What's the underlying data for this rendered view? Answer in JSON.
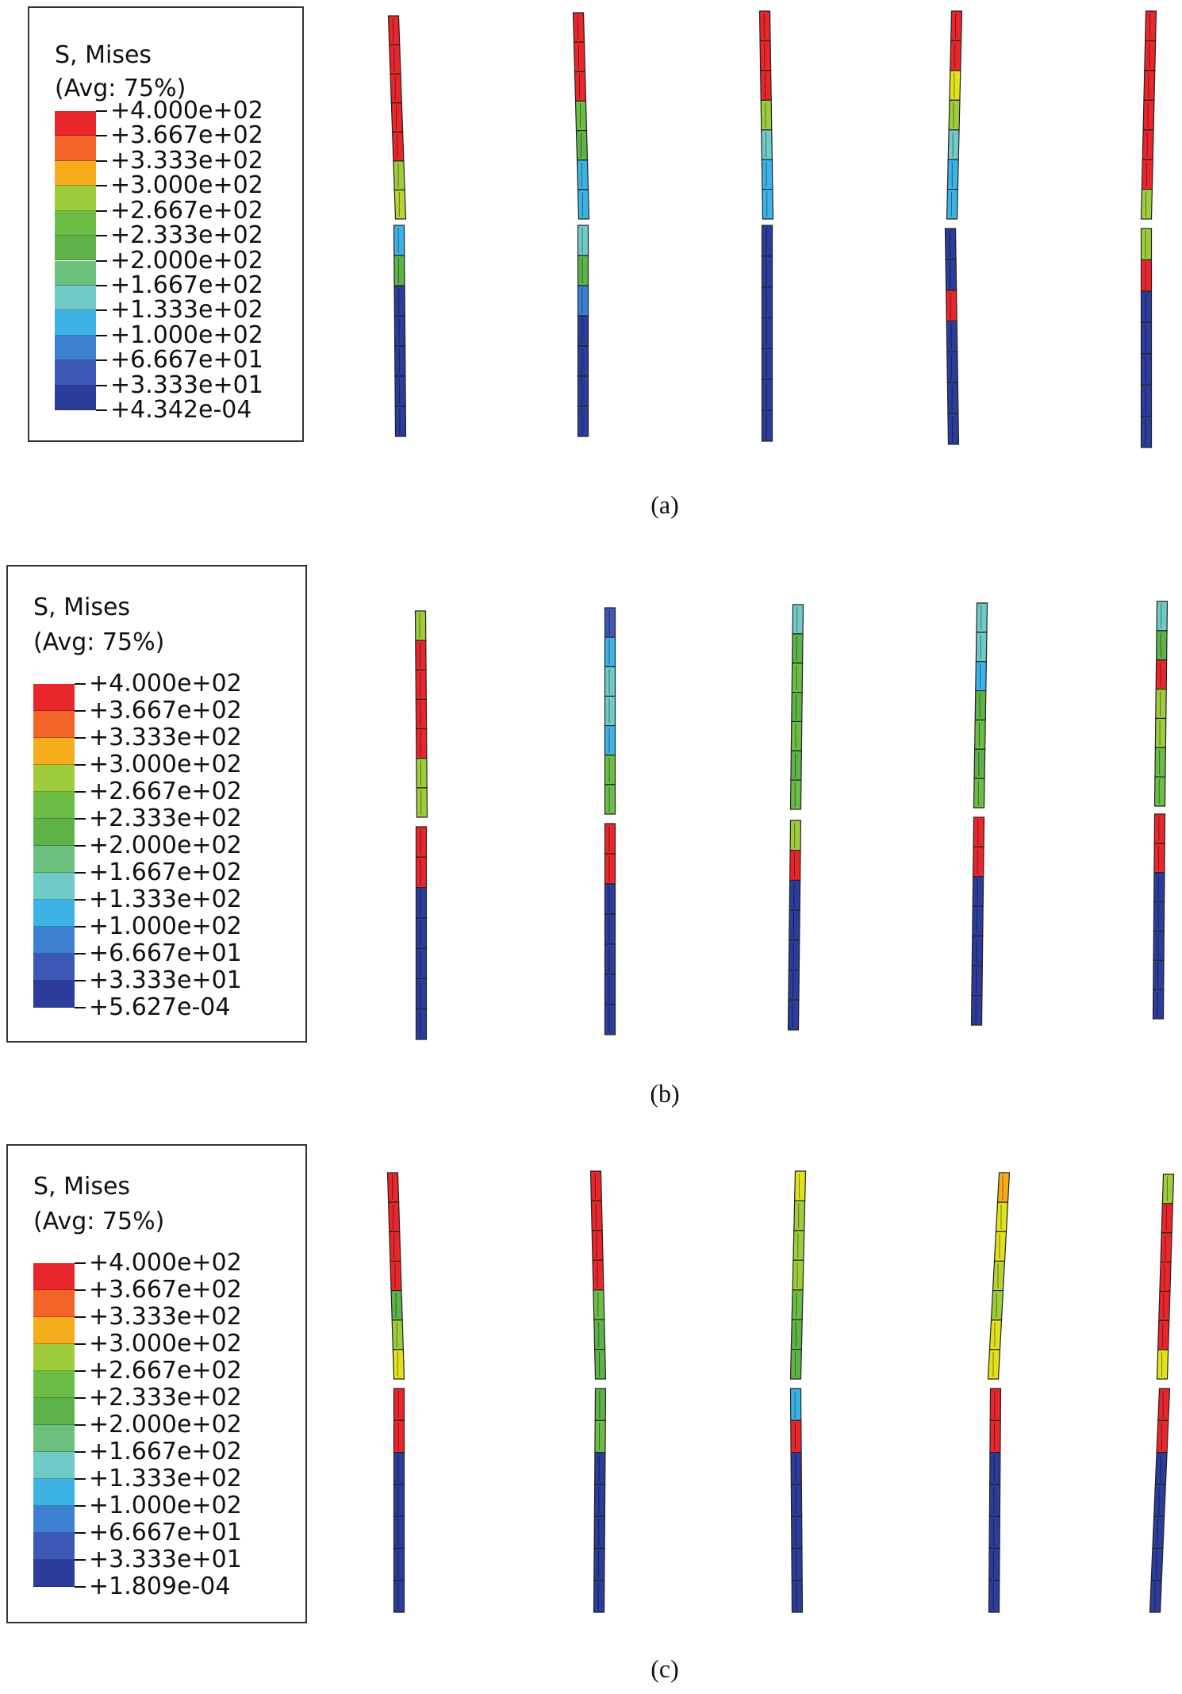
{
  "legend_title": [
    "S, Mises",
    "(Avg: 75%)"
  ],
  "colors": [
    "#e8262b",
    "#f26427",
    "#f6ad1c",
    "#e2e11d",
    "#9fcc3b",
    "#6bbd45",
    "#5db248",
    "#6cc07e",
    "#6fcac8",
    "#3db2e5",
    "#3d7fd1",
    "#3d57b4",
    "#2b3c9a"
  ],
  "panels": [
    {
      "caption": "(a)",
      "legend_values": [
        "+4.000e+02",
        "+3.667e+02",
        "+3.333e+02",
        "+3.000e+02",
        "+2.667e+02",
        "+2.333e+02",
        "+2.000e+02",
        "+1.667e+02",
        "+1.333e+02",
        "+1.000e+02",
        "+6.667e+01",
        "+3.333e+01",
        "+4.342e-04"
      ],
      "columns": [
        {
          "upper": [
            "#e8262b",
            "#e8262b",
            "#e8262b",
            "#e8262b",
            "#e8262b",
            "#9fcc3b",
            "#b9d134"
          ],
          "lower": [
            "#3db2e5",
            "#5db248",
            "#2b3c9a",
            "#2b3c9a",
            "#2b3c9a",
            "#2b3c9a",
            "#2b3c9a"
          ]
        },
        {
          "upper": [
            "#e8262b",
            "#e8262b",
            "#e8262b",
            "#6bbd45",
            "#5db248",
            "#3db2e5",
            "#3db2e5"
          ],
          "lower": [
            "#6fcac8",
            "#5db248",
            "#3d7fd1",
            "#2b3c9a",
            "#2b3c9a",
            "#2b3c9a",
            "#2b3c9a"
          ]
        },
        {
          "upper": [
            "#e8262b",
            "#e8262b",
            "#e8262b",
            "#9fcc3b",
            "#6fcac8",
            "#3db2e5",
            "#3db2e5"
          ],
          "lower": [
            "#2b3c9a",
            "#2b3c9a",
            "#2b3c9a",
            "#2b3c9a",
            "#2b3c9a",
            "#2b3c9a",
            "#2b3c9a"
          ]
        },
        {
          "upper": [
            "#e8262b",
            "#e8262b",
            "#e2e11d",
            "#9fcc3b",
            "#6fcac8",
            "#3db2e5",
            "#3db2e5"
          ],
          "lower": [
            "#2b3c9a",
            "#2b3c9a",
            "#e8262b",
            "#2b3c9a",
            "#2b3c9a",
            "#2b3c9a",
            "#2b3c9a"
          ]
        },
        {
          "upper": [
            "#e8262b",
            "#e8262b",
            "#e8262b",
            "#e8262b",
            "#e8262b",
            "#e8262b",
            "#9fcc3b"
          ],
          "lower": [
            "#9fcc3b",
            "#e8262b",
            "#2b3c9a",
            "#2b3c9a",
            "#2b3c9a",
            "#2b3c9a",
            "#2b3c9a"
          ]
        }
      ]
    },
    {
      "caption": "(b)",
      "legend_values": [
        "+4.000e+02",
        "+3.667e+02",
        "+3.333e+02",
        "+3.000e+02",
        "+2.667e+02",
        "+2.333e+02",
        "+2.000e+02",
        "+1.667e+02",
        "+1.333e+02",
        "+1.000e+02",
        "+6.667e+01",
        "+3.333e+01",
        "+5.627e-04"
      ],
      "columns": [
        {
          "upper": [
            "#9fcc3b",
            "#e8262b",
            "#e8262b",
            "#e8262b",
            "#e8262b",
            "#9fcc3b",
            "#9fcc3b"
          ],
          "lower": [
            "#e8262b",
            "#e8262b",
            "#2b3c9a",
            "#2b3c9a",
            "#2b3c9a",
            "#2b3c9a",
            "#2b3c9a"
          ]
        },
        {
          "upper": [
            "#3d57b4",
            "#3db2e5",
            "#6fcac8",
            "#6fcac8",
            "#3db2e5",
            "#6bbd45",
            "#6bbd45"
          ],
          "lower": [
            "#e8262b",
            "#e8262b",
            "#2b3c9a",
            "#2b3c9a",
            "#2b3c9a",
            "#2b3c9a",
            "#2b3c9a"
          ]
        },
        {
          "upper": [
            "#6fcac8",
            "#5db248",
            "#6bbd45",
            "#5db248",
            "#6bbd45",
            "#5db248",
            "#6bbd45"
          ],
          "lower": [
            "#9fcc3b",
            "#e8262b",
            "#2b3c9a",
            "#2b3c9a",
            "#2b3c9a",
            "#2b3c9a",
            "#2b3c9a"
          ]
        },
        {
          "upper": [
            "#6fcac8",
            "#6fcac8",
            "#3db2e5",
            "#5db248",
            "#6bbd45",
            "#5db248",
            "#6bbd45"
          ],
          "lower": [
            "#e8262b",
            "#e8262b",
            "#2b3c9a",
            "#2b3c9a",
            "#2b3c9a",
            "#2b3c9a",
            "#2b3c9a"
          ]
        },
        {
          "upper": [
            "#6fcac8",
            "#5db248",
            "#e8262b",
            "#9fcc3b",
            "#9fcc3b",
            "#6bbd45",
            "#6bbd45"
          ],
          "lower": [
            "#e8262b",
            "#e8262b",
            "#2b3c9a",
            "#2b3c9a",
            "#2b3c9a",
            "#2b3c9a",
            "#2b3c9a"
          ]
        }
      ]
    },
    {
      "caption": "(c)",
      "legend_values": [
        "+4.000e+02",
        "+3.667e+02",
        "+3.333e+02",
        "+3.000e+02",
        "+2.667e+02",
        "+2.333e+02",
        "+2.000e+02",
        "+1.667e+02",
        "+1.333e+02",
        "+1.000e+02",
        "+6.667e+01",
        "+3.333e+01",
        "+1.809e-04"
      ],
      "columns": [
        {
          "upper": [
            "#e8262b",
            "#e8262b",
            "#e8262b",
            "#e8262b",
            "#5db248",
            "#9fcc3b",
            "#e2e11d"
          ],
          "lower": [
            "#e8262b",
            "#e8262b",
            "#2b3c9a",
            "#2b3c9a",
            "#2b3c9a",
            "#2b3c9a",
            "#2b3c9a"
          ]
        },
        {
          "upper": [
            "#e8262b",
            "#e8262b",
            "#e8262b",
            "#e8262b",
            "#6bbd45",
            "#5db248",
            "#5db248"
          ],
          "lower": [
            "#5db248",
            "#6bbd45",
            "#2b3c9a",
            "#2b3c9a",
            "#2b3c9a",
            "#2b3c9a",
            "#2b3c9a"
          ]
        },
        {
          "upper": [
            "#e2e11d",
            "#9fcc3b",
            "#9fcc3b",
            "#9fcc3b",
            "#6bbd45",
            "#5db248",
            "#5db248"
          ],
          "lower": [
            "#3db2e5",
            "#e8262b",
            "#2b3c9a",
            "#2b3c9a",
            "#2b3c9a",
            "#2b3c9a",
            "#2b3c9a"
          ]
        },
        {
          "upper": [
            "#f6ad1c",
            "#e2e11d",
            "#e2e11d",
            "#b9d134",
            "#9fcc3b",
            "#e2e11d",
            "#e2e11d"
          ],
          "lower": [
            "#e8262b",
            "#e8262b",
            "#2b3c9a",
            "#2b3c9a",
            "#2b3c9a",
            "#2b3c9a",
            "#2b3c9a"
          ]
        },
        {
          "upper": [
            "#9fcc3b",
            "#e8262b",
            "#e8262b",
            "#e8262b",
            "#e8262b",
            "#e8262b",
            "#e2e11d"
          ],
          "lower": [
            "#e8262b",
            "#e8262b",
            "#2b3c9a",
            "#2b3c9a",
            "#2b3c9a",
            "#2b3c9a",
            "#2b3c9a"
          ]
        }
      ]
    }
  ]
}
